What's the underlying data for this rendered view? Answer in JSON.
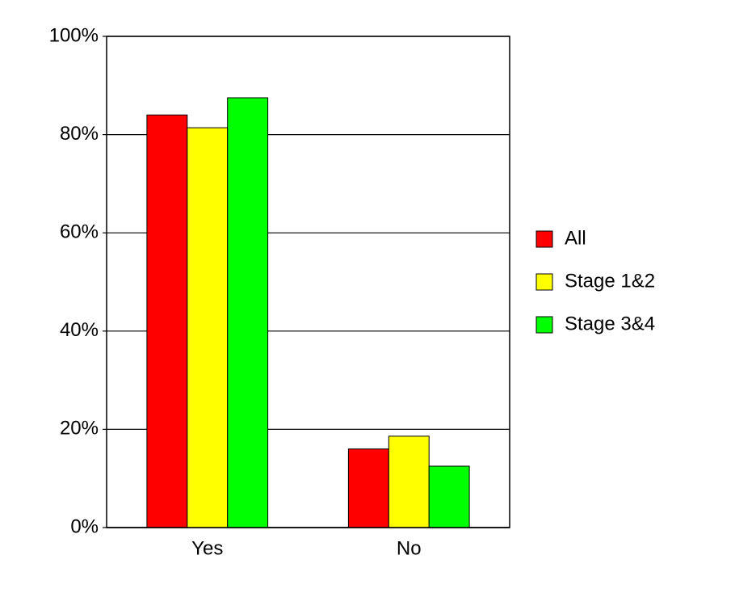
{
  "chart_data": {
    "type": "bar",
    "categories": [
      "Yes",
      "No"
    ],
    "series": [
      {
        "name": "All",
        "color": "#ff0000",
        "values": [
          84.0,
          16.0
        ]
      },
      {
        "name": "Stage 1&2",
        "color": "#ffff00",
        "values": [
          81.4,
          18.6
        ]
      },
      {
        "name": "Stage 3&4",
        "color": "#00ff00",
        "values": [
          87.5,
          12.5
        ]
      }
    ],
    "ylim": [
      0,
      100
    ],
    "yticks": [
      {
        "value": 0,
        "label": "0%"
      },
      {
        "value": 20,
        "label": "20%"
      },
      {
        "value": 40,
        "label": "40%"
      },
      {
        "value": 60,
        "label": "60%"
      },
      {
        "value": 80,
        "label": "80%"
      },
      {
        "value": 100,
        "label": "100%"
      }
    ],
    "grid": true,
    "legend": "right"
  }
}
